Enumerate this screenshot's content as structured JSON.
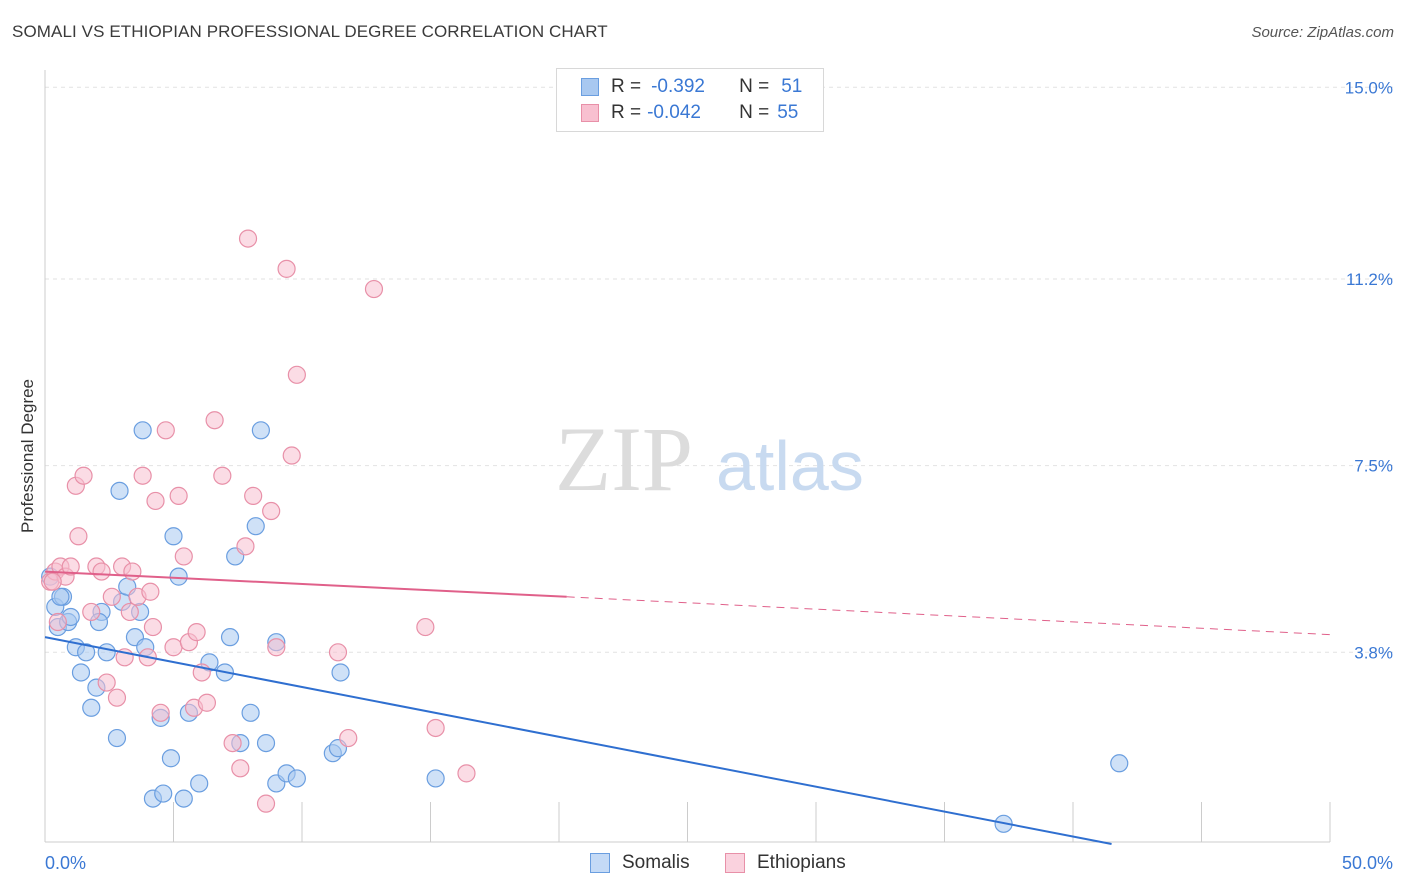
{
  "header": {
    "title": "SOMALI VS ETHIOPIAN PROFESSIONAL DEGREE CORRELATION CHART",
    "source": "Source: ZipAtlas.com"
  },
  "watermark": {
    "zip": "ZIP",
    "atlas": "atlas"
  },
  "legend_top": {
    "rows": [
      {
        "r_label": "R =",
        "r_value": "-0.392",
        "n_label": "N =",
        "n_value": "51",
        "color": "#a8c8f0",
        "border": "#6a9ee0"
      },
      {
        "r_label": "R =",
        "r_value": "-0.042",
        "n_label": "N =",
        "n_value": "55",
        "color": "#f8c0d0",
        "border": "#e890a8"
      }
    ]
  },
  "legend_bottom": [
    {
      "label": "Somalis",
      "color": "#a8c8f0",
      "border": "#6a9ee0"
    },
    {
      "label": "Ethiopians",
      "color": "#f8c0d0",
      "border": "#e890a8"
    }
  ],
  "chart_data": {
    "type": "scatter",
    "title": "SOMALI VS ETHIOPIAN PROFESSIONAL DEGREE CORRELATION CHART",
    "xlabel": "",
    "ylabel": "Professional Degree",
    "xlim": [
      0,
      50
    ],
    "ylim": [
      0,
      15.5
    ],
    "x_tick_labels": [
      "0.0%",
      "50.0%"
    ],
    "y_ticks": [
      3.8,
      7.5,
      11.2,
      15.0
    ],
    "y_tick_labels": [
      "3.8%",
      "7.5%",
      "11.2%",
      "15.0%"
    ],
    "grid": true,
    "series": [
      {
        "name": "Somalis",
        "color": "#a8c8f0",
        "stroke": "#6a9ee0",
        "line_color": "#2f6fd0",
        "trend": {
          "x": [
            0,
            41.5
          ],
          "y": [
            4.1,
            0.0
          ],
          "dashed_to": null
        },
        "points": [
          [
            0.2,
            5.3
          ],
          [
            0.4,
            4.7
          ],
          [
            0.5,
            4.3
          ],
          [
            0.7,
            4.9
          ],
          [
            0.9,
            4.4
          ],
          [
            1.0,
            4.5
          ],
          [
            1.2,
            3.9
          ],
          [
            1.4,
            3.4
          ],
          [
            1.6,
            3.8
          ],
          [
            1.8,
            2.7
          ],
          [
            2.0,
            3.1
          ],
          [
            2.2,
            4.6
          ],
          [
            2.4,
            3.8
          ],
          [
            2.8,
            2.1
          ],
          [
            3.0,
            4.8
          ],
          [
            3.2,
            5.1
          ],
          [
            3.5,
            4.1
          ],
          [
            3.7,
            4.6
          ],
          [
            3.9,
            3.9
          ],
          [
            4.2,
            0.9
          ],
          [
            4.5,
            2.5
          ],
          [
            4.6,
            1.0
          ],
          [
            4.9,
            1.7
          ],
          [
            5.0,
            6.1
          ],
          [
            5.2,
            5.3
          ],
          [
            5.4,
            0.9
          ],
          [
            5.6,
            2.6
          ],
          [
            6.0,
            1.2
          ],
          [
            6.4,
            3.6
          ],
          [
            7.0,
            3.4
          ],
          [
            7.2,
            4.1
          ],
          [
            7.4,
            5.7
          ],
          [
            7.6,
            2.0
          ],
          [
            8.0,
            2.6
          ],
          [
            8.2,
            6.3
          ],
          [
            8.6,
            2.0
          ],
          [
            9.0,
            1.2
          ],
          [
            9.4,
            1.4
          ],
          [
            9.0,
            4.0
          ],
          [
            11.2,
            1.8
          ],
          [
            11.4,
            1.9
          ],
          [
            11.5,
            3.4
          ],
          [
            3.8,
            8.2
          ],
          [
            2.9,
            7.0
          ],
          [
            8.4,
            8.2
          ],
          [
            15.2,
            1.3
          ],
          [
            37.3,
            0.4
          ],
          [
            41.8,
            1.6
          ],
          [
            9.8,
            1.3
          ],
          [
            0.6,
            4.9
          ],
          [
            2.1,
            4.4
          ]
        ]
      },
      {
        "name": "Ethiopians",
        "color": "#f8c0d0",
        "stroke": "#e890a8",
        "line_color": "#e0608a",
        "trend": {
          "x": [
            0,
            20.3
          ],
          "y": [
            5.4,
            4.9
          ],
          "dashed_to": {
            "x": 50,
            "y": 4.15
          }
        },
        "points": [
          [
            0.2,
            5.2
          ],
          [
            0.4,
            5.4
          ],
          [
            0.6,
            5.5
          ],
          [
            0.8,
            5.3
          ],
          [
            1.0,
            5.5
          ],
          [
            1.2,
            7.1
          ],
          [
            1.3,
            6.1
          ],
          [
            1.5,
            7.3
          ],
          [
            1.8,
            4.6
          ],
          [
            2.0,
            5.5
          ],
          [
            2.2,
            5.4
          ],
          [
            2.4,
            3.2
          ],
          [
            2.6,
            4.9
          ],
          [
            2.8,
            2.9
          ],
          [
            3.0,
            5.5
          ],
          [
            3.1,
            3.7
          ],
          [
            3.4,
            5.4
          ],
          [
            3.6,
            4.9
          ],
          [
            3.8,
            7.3
          ],
          [
            4.0,
            3.7
          ],
          [
            4.2,
            4.3
          ],
          [
            4.3,
            6.8
          ],
          [
            4.5,
            2.6
          ],
          [
            4.7,
            8.2
          ],
          [
            5.0,
            3.9
          ],
          [
            5.2,
            6.9
          ],
          [
            5.4,
            5.7
          ],
          [
            5.6,
            4.0
          ],
          [
            5.8,
            2.7
          ],
          [
            5.9,
            4.2
          ],
          [
            6.1,
            3.4
          ],
          [
            6.3,
            2.8
          ],
          [
            6.6,
            8.4
          ],
          [
            6.9,
            7.3
          ],
          [
            7.3,
            2.0
          ],
          [
            7.6,
            1.5
          ],
          [
            7.8,
            5.9
          ],
          [
            7.9,
            12.0
          ],
          [
            8.1,
            6.9
          ],
          [
            8.6,
            0.8
          ],
          [
            8.8,
            6.6
          ],
          [
            9.0,
            3.9
          ],
          [
            9.4,
            11.4
          ],
          [
            9.6,
            7.7
          ],
          [
            9.8,
            9.3
          ],
          [
            11.4,
            3.8
          ],
          [
            11.8,
            2.1
          ],
          [
            12.8,
            11.0
          ],
          [
            14.8,
            4.3
          ],
          [
            15.2,
            2.3
          ],
          [
            16.4,
            1.4
          ],
          [
            0.5,
            4.4
          ],
          [
            0.3,
            5.2
          ],
          [
            3.3,
            4.6
          ],
          [
            4.1,
            5.0
          ]
        ]
      }
    ]
  }
}
